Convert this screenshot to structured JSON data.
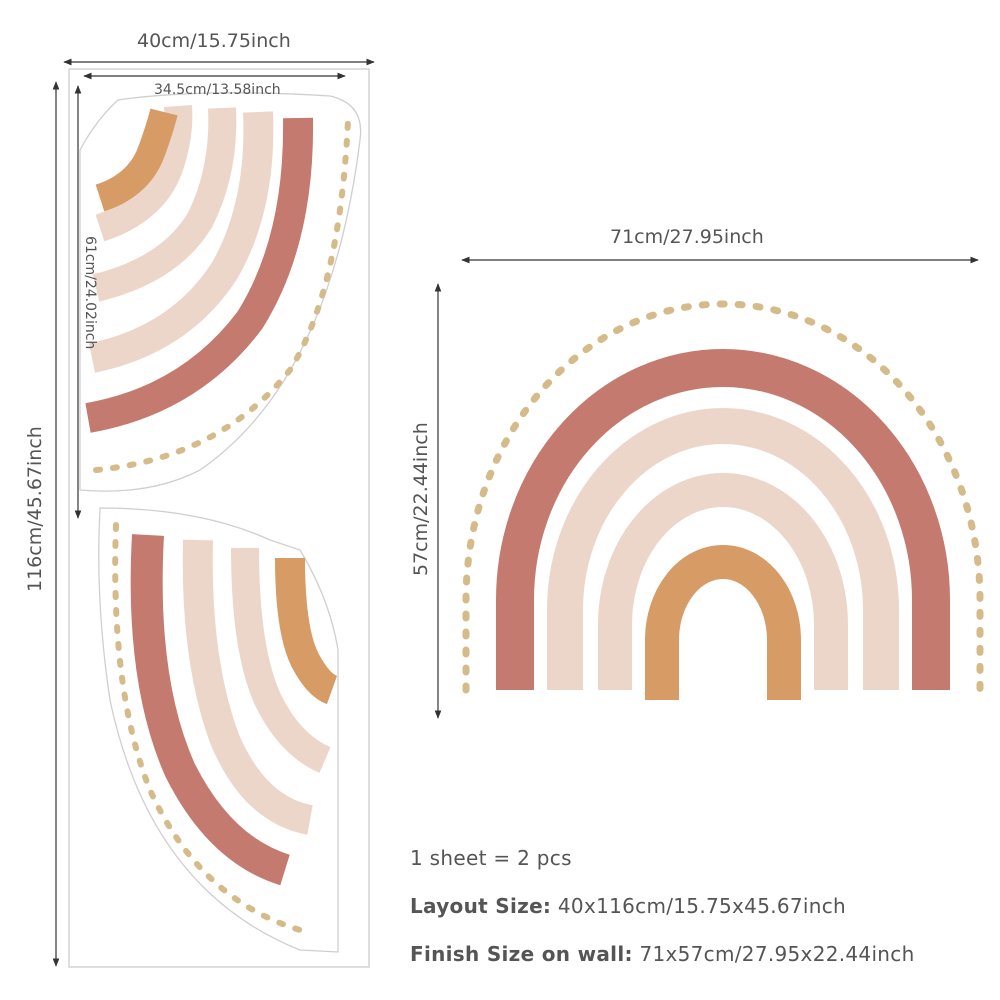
{
  "dimensions": {
    "layout_width": "40cm/15.75inch",
    "layout_height": "116cm/45.67inch",
    "piece_width": "34.5cm/13.58inch",
    "piece_height": "61cm/24.02inch",
    "finish_width": "71cm/27.95inch",
    "finish_height": "57cm/22.44inch"
  },
  "info": {
    "sheet_count": "1 sheet = 2 pcs",
    "layout_label": "Layout Size:",
    "layout_value": "40x116cm/15.75x45.67inch",
    "finish_label": "Finish Size on wall:",
    "finish_value": "71x57cm/27.95x22.44inch"
  },
  "colors": {
    "terracotta": "#c47a6e",
    "blush": "#ecd6ca",
    "mustard": "#d79b65",
    "dots": "#d6bb8a",
    "outline": "#cfcfcf",
    "dimension_line": "#333333"
  }
}
